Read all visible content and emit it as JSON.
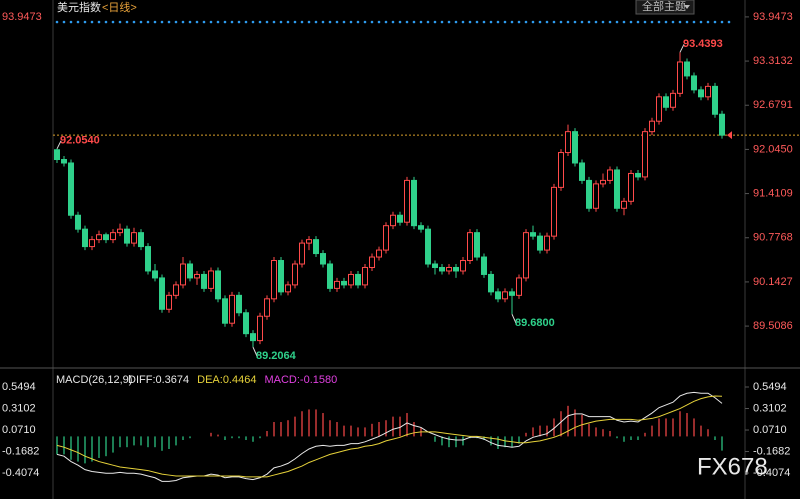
{
  "header": {
    "title": "美元指数",
    "subtitle": "<日线>",
    "button": "全部主题",
    "watermark": "FX678"
  },
  "chart_data": [
    {
      "type": "candlestick",
      "up_color": "#ff4a4a",
      "down_color": "#2fd18b",
      "axis_color": "#ff5a5a",
      "price_line_color": "#d9a02b",
      "ylim": [
        88.95,
        94.19
      ],
      "yticks": [
        93.9473,
        93.3132,
        92.6791,
        {
          "value": 92.045,
          "label": "92.0450"
        },
        91.4109,
        90.7768,
        90.1427,
        89.5086
      ],
      "annotations": [
        {
          "value": 92.054,
          "label": "92.0540",
          "color": "#ff4a4a"
        },
        {
          "value": 93.4393,
          "label": "93.4393",
          "color": "#ff4a4a"
        },
        {
          "value": 89.2064,
          "label": "89.2064",
          "color": "#2fd18b"
        },
        {
          "value": 89.68,
          "label": "89.6800",
          "color": "#2fd18b"
        }
      ],
      "ohlc": [
        [
          92.04,
          92.054,
          91.85,
          91.9
        ],
        [
          91.9,
          91.95,
          91.8,
          91.85
        ],
        [
          91.85,
          91.9,
          91.05,
          91.1
        ],
        [
          91.1,
          91.15,
          90.85,
          90.9
        ],
        [
          90.9,
          90.95,
          90.6,
          90.65
        ],
        [
          90.65,
          90.8,
          90.6,
          90.75
        ],
        [
          90.75,
          90.88,
          90.7,
          90.82
        ],
        [
          90.82,
          90.85,
          90.7,
          90.75
        ],
        [
          90.75,
          90.9,
          90.7,
          90.85
        ],
        [
          90.85,
          90.98,
          90.8,
          90.9
        ],
        [
          90.9,
          90.95,
          90.65,
          90.7
        ],
        [
          90.7,
          90.92,
          90.65,
          90.85
        ],
        [
          90.85,
          90.9,
          90.6,
          90.65
        ],
        [
          90.65,
          90.7,
          90.25,
          90.3
        ],
        [
          90.3,
          90.4,
          90.15,
          90.2
        ],
        [
          90.2,
          90.25,
          89.7,
          89.75
        ],
        [
          89.75,
          90.0,
          89.7,
          89.95
        ],
        [
          89.95,
          90.15,
          89.9,
          90.1
        ],
        [
          90.1,
          90.5,
          90.05,
          90.4
        ],
        [
          90.4,
          90.45,
          90.15,
          90.2
        ],
        [
          90.2,
          90.3,
          90.1,
          90.25
        ],
        [
          90.25,
          90.3,
          90.0,
          90.05
        ],
        [
          90.05,
          90.35,
          90.0,
          90.3
        ],
        [
          90.3,
          90.35,
          89.85,
          89.9
        ],
        [
          89.9,
          89.95,
          89.5,
          89.55
        ],
        [
          89.55,
          90.0,
          89.5,
          89.95
        ],
        [
          89.95,
          90.0,
          89.65,
          89.7
        ],
        [
          89.7,
          89.75,
          89.35,
          89.4
        ],
        [
          89.4,
          89.45,
          89.2064,
          89.3
        ],
        [
          89.3,
          89.7,
          89.25,
          89.65
        ],
        [
          89.65,
          89.95,
          89.6,
          89.9
        ],
        [
          89.9,
          90.5,
          89.85,
          90.45
        ],
        [
          90.45,
          90.5,
          89.95,
          90.0
        ],
        [
          90.0,
          90.15,
          89.95,
          90.1
        ],
        [
          90.1,
          90.45,
          90.05,
          90.4
        ],
        [
          90.4,
          90.75,
          90.35,
          90.7
        ],
        [
          90.7,
          90.8,
          90.6,
          90.75
        ],
        [
          90.75,
          90.8,
          90.5,
          90.55
        ],
        [
          90.55,
          90.6,
          90.35,
          90.4
        ],
        [
          90.4,
          90.45,
          90.0,
          90.05
        ],
        [
          90.05,
          90.2,
          90.0,
          90.15
        ],
        [
          90.15,
          90.2,
          90.05,
          90.1
        ],
        [
          90.1,
          90.3,
          90.05,
          90.25
        ],
        [
          90.25,
          90.3,
          90.05,
          90.1
        ],
        [
          90.1,
          90.4,
          90.05,
          90.35
        ],
        [
          90.35,
          90.55,
          90.3,
          90.5
        ],
        [
          90.5,
          90.65,
          90.45,
          90.6
        ],
        [
          90.6,
          91.0,
          90.55,
          90.95
        ],
        [
          90.95,
          91.15,
          90.9,
          91.1
        ],
        [
          91.1,
          91.15,
          90.95,
          91.0
        ],
        [
          91.0,
          91.65,
          90.95,
          91.6
        ],
        [
          91.6,
          91.65,
          90.9,
          90.95
        ],
        [
          90.95,
          91.0,
          90.85,
          90.9
        ],
        [
          90.9,
          90.95,
          90.35,
          90.4
        ],
        [
          90.4,
          90.45,
          90.25,
          90.35
        ],
        [
          90.35,
          90.4,
          90.25,
          90.3
        ],
        [
          90.3,
          90.4,
          90.25,
          90.35
        ],
        [
          90.35,
          90.4,
          90.2,
          90.3
        ],
        [
          90.3,
          90.5,
          90.25,
          90.45
        ],
        [
          90.45,
          90.9,
          90.4,
          90.85
        ],
        [
          90.85,
          90.9,
          90.45,
          90.5
        ],
        [
          90.5,
          90.55,
          90.2,
          90.25
        ],
        [
          90.25,
          90.3,
          89.95,
          90.0
        ],
        [
          90.0,
          90.05,
          89.85,
          89.9
        ],
        [
          89.9,
          90.05,
          89.85,
          90.0
        ],
        [
          90.0,
          90.05,
          89.68,
          89.95
        ],
        [
          89.95,
          90.25,
          89.9,
          90.2
        ],
        [
          90.2,
          90.9,
          90.15,
          90.85
        ],
        [
          90.85,
          90.95,
          90.75,
          90.8
        ],
        [
          90.8,
          90.85,
          90.55,
          90.6
        ],
        [
          90.6,
          90.85,
          90.55,
          90.8
        ],
        [
          90.8,
          91.55,
          90.75,
          91.5
        ],
        [
          91.5,
          92.05,
          91.45,
          92.0
        ],
        [
          92.0,
          92.4,
          91.95,
          92.3
        ],
        [
          92.3,
          92.35,
          91.8,
          91.85
        ],
        [
          91.85,
          91.9,
          91.55,
          91.6
        ],
        [
          91.6,
          91.65,
          91.15,
          91.2
        ],
        [
          91.2,
          91.6,
          91.15,
          91.55
        ],
        [
          91.55,
          91.7,
          91.5,
          91.6
        ],
        [
          91.6,
          91.8,
          91.55,
          91.75
        ],
        [
          91.75,
          91.8,
          91.15,
          91.2
        ],
        [
          91.2,
          91.35,
          91.1,
          91.3
        ],
        [
          91.3,
          91.75,
          91.25,
          91.7
        ],
        [
          91.7,
          91.75,
          91.6,
          91.65
        ],
        [
          91.65,
          92.35,
          91.6,
          92.3
        ],
        [
          92.3,
          92.5,
          92.25,
          92.45
        ],
        [
          92.45,
          92.85,
          92.4,
          92.8
        ],
        [
          92.8,
          92.85,
          92.6,
          92.65
        ],
        [
          92.65,
          92.9,
          92.6,
          92.85
        ],
        [
          92.85,
          93.4393,
          92.8,
          93.3
        ],
        [
          93.3,
          93.35,
          93.05,
          93.1
        ],
        [
          93.1,
          93.15,
          92.85,
          92.9
        ],
        [
          92.9,
          92.95,
          92.75,
          92.8
        ],
        [
          92.8,
          93.0,
          92.75,
          92.95
        ],
        [
          92.95,
          93.0,
          92.5,
          92.55
        ],
        [
          92.55,
          92.6,
          92.2,
          92.25
        ]
      ]
    },
    {
      "type": "macd",
      "title": "MACD(26,12,9)",
      "axis_color": "#e8e8e8",
      "up_color": "#ff4a4a",
      "down_color": "#2fd18b",
      "ylim": [
        -0.674,
        0.683
      ],
      "yticks": [
        0.5494,
        0.3102,
        {
          "value": 0.071,
          "label": "0.0710"
        },
        -0.1682,
        -0.4074
      ],
      "legend": [
        {
          "label": "DIFF:0.3674",
          "color": "#e8e8e8"
        },
        {
          "label": "DEA:0.4464",
          "color": "#e6d23a"
        },
        {
          "label": "MACD:-0.1580",
          "color": "#e040e0"
        }
      ],
      "diff": [
        -0.2,
        -0.22,
        -0.28,
        -0.32,
        -0.37,
        -0.39,
        -0.4,
        -0.41,
        -0.41,
        -0.4,
        -0.41,
        -0.41,
        -0.42,
        -0.44,
        -0.46,
        -0.5,
        -0.5,
        -0.49,
        -0.46,
        -0.45,
        -0.44,
        -0.44,
        -0.42,
        -0.43,
        -0.46,
        -0.45,
        -0.45,
        -0.47,
        -0.48,
        -0.46,
        -0.42,
        -0.35,
        -0.33,
        -0.3,
        -0.25,
        -0.19,
        -0.14,
        -0.11,
        -0.1,
        -0.11,
        -0.1,
        -0.1,
        -0.08,
        -0.08,
        -0.06,
        -0.03,
        0.0,
        0.04,
        0.08,
        0.1,
        0.15,
        0.12,
        0.1,
        0.05,
        0.02,
        -0.01,
        -0.03,
        -0.04,
        -0.04,
        -0.01,
        -0.01,
        -0.03,
        -0.07,
        -0.1,
        -0.11,
        -0.12,
        -0.11,
        -0.05,
        -0.01,
        0.01,
        0.03,
        0.09,
        0.16,
        0.23,
        0.25,
        0.25,
        0.22,
        0.22,
        0.22,
        0.22,
        0.18,
        0.16,
        0.17,
        0.16,
        0.21,
        0.26,
        0.32,
        0.35,
        0.38,
        0.45,
        0.48,
        0.49,
        0.48,
        0.48,
        0.43,
        0.3674
      ],
      "dea": [
        -0.1,
        -0.12,
        -0.15,
        -0.18,
        -0.22,
        -0.25,
        -0.28,
        -0.3,
        -0.32,
        -0.34,
        -0.35,
        -0.36,
        -0.37,
        -0.38,
        -0.4,
        -0.42,
        -0.43,
        -0.44,
        -0.44,
        -0.44,
        -0.44,
        -0.44,
        -0.44,
        -0.44,
        -0.44,
        -0.44,
        -0.44,
        -0.45,
        -0.45,
        -0.45,
        -0.45,
        -0.43,
        -0.41,
        -0.39,
        -0.36,
        -0.33,
        -0.29,
        -0.26,
        -0.23,
        -0.2,
        -0.18,
        -0.16,
        -0.14,
        -0.13,
        -0.11,
        -0.1,
        -0.08,
        -0.05,
        -0.03,
        -0.01,
        0.02,
        0.04,
        0.05,
        0.05,
        0.05,
        0.04,
        0.03,
        0.02,
        0.01,
        0.0,
        0.0,
        -0.01,
        -0.02,
        -0.03,
        -0.05,
        -0.06,
        -0.07,
        -0.07,
        -0.06,
        -0.05,
        -0.03,
        -0.01,
        0.02,
        0.06,
        0.1,
        0.13,
        0.15,
        0.17,
        0.18,
        0.19,
        0.19,
        0.19,
        0.19,
        0.18,
        0.19,
        0.2,
        0.22,
        0.25,
        0.28,
        0.31,
        0.35,
        0.39,
        0.42,
        0.44,
        0.45,
        0.4464
      ],
      "macd": [
        -0.2,
        -0.2,
        -0.26,
        -0.28,
        -0.3,
        -0.28,
        -0.24,
        -0.22,
        -0.18,
        -0.12,
        -0.12,
        -0.1,
        -0.1,
        -0.12,
        -0.12,
        -0.16,
        -0.14,
        -0.1,
        -0.04,
        -0.02,
        0.0,
        0.0,
        0.04,
        0.02,
        -0.04,
        -0.02,
        -0.02,
        -0.04,
        -0.06,
        -0.02,
        0.06,
        0.16,
        0.16,
        0.18,
        0.22,
        0.28,
        0.3,
        0.3,
        0.26,
        0.18,
        0.16,
        0.12,
        0.12,
        0.1,
        0.1,
        0.14,
        0.16,
        0.18,
        0.22,
        0.22,
        0.26,
        0.16,
        0.1,
        0.0,
        -0.06,
        -0.1,
        -0.12,
        -0.12,
        -0.1,
        -0.02,
        -0.02,
        -0.04,
        -0.1,
        -0.14,
        -0.12,
        -0.12,
        -0.08,
        0.04,
        0.1,
        0.12,
        0.12,
        0.2,
        0.28,
        0.34,
        0.3,
        0.24,
        0.14,
        0.1,
        0.08,
        0.06,
        -0.02,
        -0.06,
        -0.04,
        -0.04,
        0.04,
        0.12,
        0.2,
        0.2,
        0.2,
        0.28,
        0.26,
        0.2,
        0.12,
        0.08,
        -0.04,
        -0.158
      ]
    }
  ]
}
